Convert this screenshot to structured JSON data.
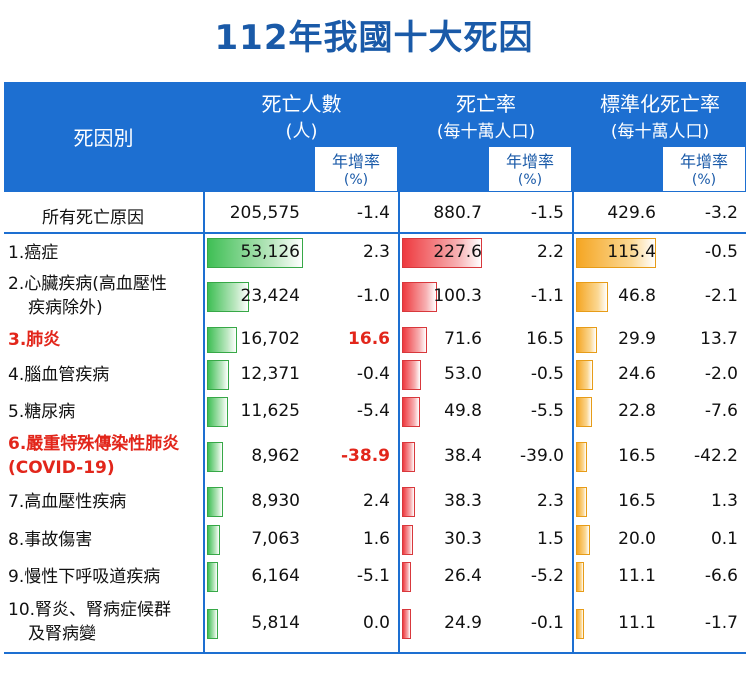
{
  "title": "112年我國十大死因",
  "headers": {
    "cause": "死因別",
    "deaths": "死亡人數",
    "deaths_unit": "(人)",
    "rate": "死亡率",
    "rate_unit": "(每十萬人口)",
    "std_rate": "標準化死亡率",
    "std_rate_unit": "(每十萬人口)",
    "growth": "年增率",
    "growth_unit": "(%)"
  },
  "total": {
    "label": "所有死亡原因",
    "deaths": "205,575",
    "deaths_growth": "-1.4",
    "rate": "880.7",
    "rate_growth": "-1.5",
    "std_rate": "429.6",
    "std_rate_growth": "-3.2"
  },
  "rows": [
    {
      "label": "1.癌症",
      "highlight": false,
      "deaths": "53,126",
      "deaths_growth": "2.3",
      "rate": "227.6",
      "rate_growth": "2.2",
      "std_rate": "115.4",
      "std_rate_growth": "-0.5"
    },
    {
      "label": "2.心臟疾病(高血壓性",
      "label2": "疾病除外)",
      "highlight": false,
      "deaths": "23,424",
      "deaths_growth": "-1.0",
      "rate": "100.3",
      "rate_growth": "-1.1",
      "std_rate": "46.8",
      "std_rate_growth": "-2.1"
    },
    {
      "label": "3.肺炎",
      "highlight": true,
      "deaths": "16,702",
      "deaths_growth": "16.6",
      "rate": "71.6",
      "rate_growth": "16.5",
      "std_rate": "29.9",
      "std_rate_growth": "13.7"
    },
    {
      "label": "4.腦血管疾病",
      "highlight": false,
      "deaths": "12,371",
      "deaths_growth": "-0.4",
      "rate": "53.0",
      "rate_growth": "-0.5",
      "std_rate": "24.6",
      "std_rate_growth": "-2.0"
    },
    {
      "label": "5.糖尿病",
      "highlight": false,
      "deaths": "11,625",
      "deaths_growth": "-5.4",
      "rate": "49.8",
      "rate_growth": "-5.5",
      "std_rate": "22.8",
      "std_rate_growth": "-7.6"
    },
    {
      "label": "6.嚴重特殊傳染性肺炎",
      "label2": "(COVID-19)",
      "highlight": true,
      "deaths": "8,962",
      "deaths_growth": "-38.9",
      "rate": "38.4",
      "rate_growth": "-39.0",
      "std_rate": "16.5",
      "std_rate_growth": "-42.2"
    },
    {
      "label": "7.高血壓性疾病",
      "highlight": false,
      "deaths": "8,930",
      "deaths_growth": "2.4",
      "rate": "38.3",
      "rate_growth": "2.3",
      "std_rate": "16.5",
      "std_rate_growth": "1.3"
    },
    {
      "label": "8.事故傷害",
      "highlight": false,
      "deaths": "7,063",
      "deaths_growth": "1.6",
      "rate": "30.3",
      "rate_growth": "1.5",
      "std_rate": "20.0",
      "std_rate_growth": "0.1"
    },
    {
      "label": "9.慢性下呼吸道疾病",
      "highlight": false,
      "deaths": "6,164",
      "deaths_growth": "-5.1",
      "rate": "26.4",
      "rate_growth": "-5.2",
      "std_rate": "11.1",
      "std_rate_growth": "-6.6"
    },
    {
      "label": "10.腎炎、腎病症候群",
      "label2": "及腎病變",
      "highlight": false,
      "deaths": "5,814",
      "deaths_growth": "0.0",
      "rate": "24.9",
      "rate_growth": "-0.1",
      "std_rate": "11.1",
      "std_rate_growth": "-1.7"
    }
  ],
  "chart_data": {
    "type": "bar",
    "title": "112年我國十大死因",
    "categories": [
      "1.癌症",
      "2.心臟疾病(高血壓性疾病除外)",
      "3.肺炎",
      "4.腦血管疾病",
      "5.糖尿病",
      "6.嚴重特殊傳染性肺炎(COVID-19)",
      "7.高血壓性疾病",
      "8.事故傷害",
      "9.慢性下呼吸道疾病",
      "10.腎炎、腎病症候群及腎病變"
    ],
    "series": [
      {
        "name": "死亡人數",
        "values": [
          53126,
          23424,
          16702,
          12371,
          11625,
          8962,
          8930,
          7063,
          6164,
          5814
        ]
      },
      {
        "name": "死亡率",
        "values": [
          227.6,
          100.3,
          71.6,
          53.0,
          49.8,
          38.4,
          38.3,
          30.3,
          26.4,
          24.9
        ]
      },
      {
        "name": "標準化死亡率",
        "values": [
          115.4,
          46.8,
          29.9,
          24.6,
          22.8,
          16.5,
          16.5,
          20.0,
          11.1,
          11.1
        ]
      }
    ],
    "colors": {
      "deaths": "#3fbf55",
      "rate": "#ee3a3f",
      "std_rate": "#f5a623",
      "header": "#1d6fd1",
      "highlight": "#e2261b"
    }
  }
}
